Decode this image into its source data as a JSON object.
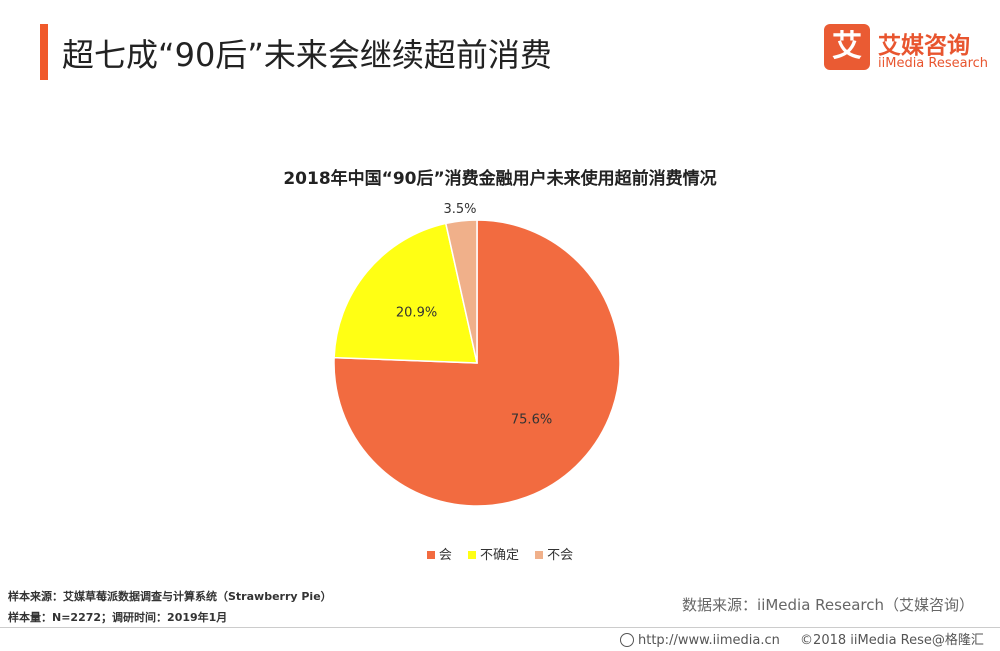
{
  "header": {
    "title": "超七成“90后”未来会继续超前消费",
    "accent_color": "#f0592a"
  },
  "logo": {
    "mark": "艾",
    "cn": "艾媒咨询",
    "en": "iiMedia Research",
    "color": "#e8552f"
  },
  "chart_data": {
    "type": "pie",
    "title": "2018年中国“90后”消费金融用户未来使用超前消费情况",
    "slices": [
      {
        "label": "会",
        "value": 75.6,
        "display": "75.6%",
        "color": "#f26b40"
      },
      {
        "label": "不确定",
        "value": 20.9,
        "display": "20.9%",
        "color": "#ffff14"
      },
      {
        "label": "不会",
        "value": 3.5,
        "display": "3.5%",
        "color": "#f0b08a"
      }
    ],
    "legend_position": "bottom"
  },
  "footnotes": {
    "sample_source": "样本来源：艾媒草莓派数据调查与计算系统（Strawberry Pie）",
    "sample_size": "样本量：N=2272；调研时间：2019年1月"
  },
  "source_text": "数据来源：iiMedia Research（艾媒咨询）",
  "bottom_bar": {
    "url": "http://www.iimedia.cn",
    "copyright": "©2018  iiMedia Rese",
    "watermark": "@格隆汇"
  }
}
